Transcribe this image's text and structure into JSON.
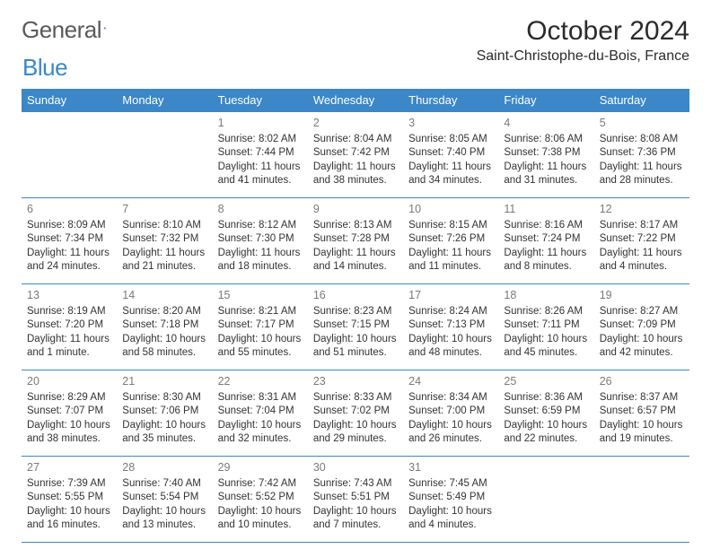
{
  "logo": {
    "word1": "General",
    "word2": "Blue"
  },
  "title": "October 2024",
  "location": "Saint-Christophe-du-Bois, France",
  "colors": {
    "header_bg": "#3b87c8",
    "border": "#3b87c8",
    "text": "#2b2b2b",
    "daynum": "#7a7a7a"
  },
  "weekdays": [
    "Sunday",
    "Monday",
    "Tuesday",
    "Wednesday",
    "Thursday",
    "Friday",
    "Saturday"
  ],
  "grid": {
    "first_weekday_index": 2,
    "days_in_month": 31
  },
  "days": {
    "1": {
      "sunrise": "8:02 AM",
      "sunset": "7:44 PM",
      "daylight": "11 hours and 41 minutes."
    },
    "2": {
      "sunrise": "8:04 AM",
      "sunset": "7:42 PM",
      "daylight": "11 hours and 38 minutes."
    },
    "3": {
      "sunrise": "8:05 AM",
      "sunset": "7:40 PM",
      "daylight": "11 hours and 34 minutes."
    },
    "4": {
      "sunrise": "8:06 AM",
      "sunset": "7:38 PM",
      "daylight": "11 hours and 31 minutes."
    },
    "5": {
      "sunrise": "8:08 AM",
      "sunset": "7:36 PM",
      "daylight": "11 hours and 28 minutes."
    },
    "6": {
      "sunrise": "8:09 AM",
      "sunset": "7:34 PM",
      "daylight": "11 hours and 24 minutes."
    },
    "7": {
      "sunrise": "8:10 AM",
      "sunset": "7:32 PM",
      "daylight": "11 hours and 21 minutes."
    },
    "8": {
      "sunrise": "8:12 AM",
      "sunset": "7:30 PM",
      "daylight": "11 hours and 18 minutes."
    },
    "9": {
      "sunrise": "8:13 AM",
      "sunset": "7:28 PM",
      "daylight": "11 hours and 14 minutes."
    },
    "10": {
      "sunrise": "8:15 AM",
      "sunset": "7:26 PM",
      "daylight": "11 hours and 11 minutes."
    },
    "11": {
      "sunrise": "8:16 AM",
      "sunset": "7:24 PM",
      "daylight": "11 hours and 8 minutes."
    },
    "12": {
      "sunrise": "8:17 AM",
      "sunset": "7:22 PM",
      "daylight": "11 hours and 4 minutes."
    },
    "13": {
      "sunrise": "8:19 AM",
      "sunset": "7:20 PM",
      "daylight": "11 hours and 1 minute."
    },
    "14": {
      "sunrise": "8:20 AM",
      "sunset": "7:18 PM",
      "daylight": "10 hours and 58 minutes."
    },
    "15": {
      "sunrise": "8:21 AM",
      "sunset": "7:17 PM",
      "daylight": "10 hours and 55 minutes."
    },
    "16": {
      "sunrise": "8:23 AM",
      "sunset": "7:15 PM",
      "daylight": "10 hours and 51 minutes."
    },
    "17": {
      "sunrise": "8:24 AM",
      "sunset": "7:13 PM",
      "daylight": "10 hours and 48 minutes."
    },
    "18": {
      "sunrise": "8:26 AM",
      "sunset": "7:11 PM",
      "daylight": "10 hours and 45 minutes."
    },
    "19": {
      "sunrise": "8:27 AM",
      "sunset": "7:09 PM",
      "daylight": "10 hours and 42 minutes."
    },
    "20": {
      "sunrise": "8:29 AM",
      "sunset": "7:07 PM",
      "daylight": "10 hours and 38 minutes."
    },
    "21": {
      "sunrise": "8:30 AM",
      "sunset": "7:06 PM",
      "daylight": "10 hours and 35 minutes."
    },
    "22": {
      "sunrise": "8:31 AM",
      "sunset": "7:04 PM",
      "daylight": "10 hours and 32 minutes."
    },
    "23": {
      "sunrise": "8:33 AM",
      "sunset": "7:02 PM",
      "daylight": "10 hours and 29 minutes."
    },
    "24": {
      "sunrise": "8:34 AM",
      "sunset": "7:00 PM",
      "daylight": "10 hours and 26 minutes."
    },
    "25": {
      "sunrise": "8:36 AM",
      "sunset": "6:59 PM",
      "daylight": "10 hours and 22 minutes."
    },
    "26": {
      "sunrise": "8:37 AM",
      "sunset": "6:57 PM",
      "daylight": "10 hours and 19 minutes."
    },
    "27": {
      "sunrise": "7:39 AM",
      "sunset": "5:55 PM",
      "daylight": "10 hours and 16 minutes."
    },
    "28": {
      "sunrise": "7:40 AM",
      "sunset": "5:54 PM",
      "daylight": "10 hours and 13 minutes."
    },
    "29": {
      "sunrise": "7:42 AM",
      "sunset": "5:52 PM",
      "daylight": "10 hours and 10 minutes."
    },
    "30": {
      "sunrise": "7:43 AM",
      "sunset": "5:51 PM",
      "daylight": "10 hours and 7 minutes."
    },
    "31": {
      "sunrise": "7:45 AM",
      "sunset": "5:49 PM",
      "daylight": "10 hours and 4 minutes."
    }
  },
  "labels": {
    "sunrise": "Sunrise: ",
    "sunset": "Sunset: ",
    "daylight": "Daylight: "
  }
}
